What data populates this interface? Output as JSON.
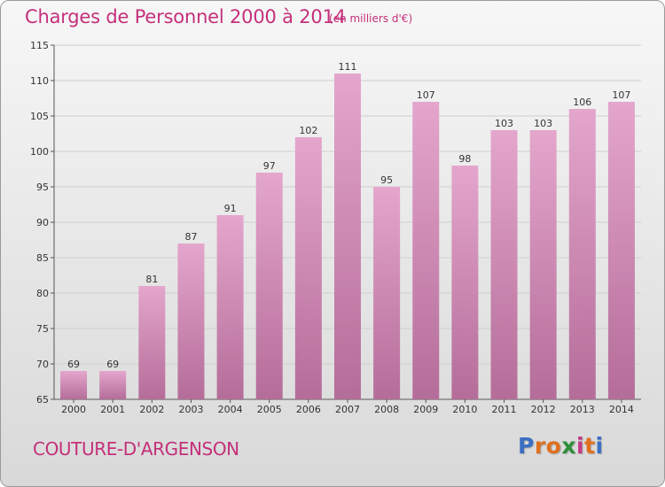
{
  "title": "Charges de Personnel 2000 à 2014",
  "subtitle": "(en milliers d'€)",
  "place_name": "COUTURE-D'ARGENSON",
  "logo": {
    "letters": [
      "P",
      "r",
      "o",
      "x",
      "i",
      "t",
      "i"
    ],
    "colors": [
      "#3a6fc4",
      "#e0701e",
      "#e0701e",
      "#2e8f3a",
      "#c43a86",
      "#e0701e",
      "#3a6fc4"
    ]
  },
  "colors": {
    "bar_top": "#e4a6cc",
    "bar_bottom": "#b46d99",
    "text": "#c4307a"
  },
  "chart_data": {
    "type": "bar",
    "title": "Charges de Personnel 2000 à 2014",
    "subtitle": "(en milliers d'€)",
    "categories": [
      "2000",
      "2001",
      "2002",
      "2003",
      "2004",
      "2005",
      "2006",
      "2007",
      "2008",
      "2009",
      "2010",
      "2011",
      "2012",
      "2013",
      "2014"
    ],
    "values": [
      69,
      69,
      81,
      87,
      91,
      97,
      102,
      111,
      95,
      107,
      98,
      103,
      103,
      106,
      107
    ],
    "ylim": [
      65,
      115
    ],
    "yticks": [
      65,
      70,
      75,
      80,
      85,
      90,
      95,
      100,
      105,
      110,
      115
    ],
    "grid": true,
    "xlabel": "",
    "ylabel": ""
  }
}
